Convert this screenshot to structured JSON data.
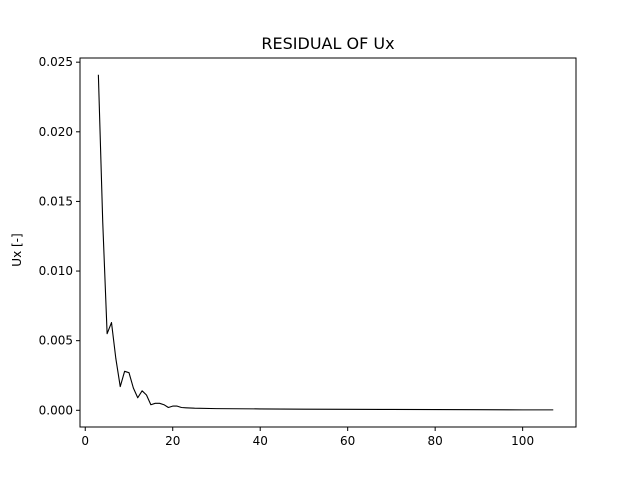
{
  "chart_data": {
    "type": "line",
    "title": "RESIDUAL OF Ux",
    "xlabel": "",
    "ylabel": "Ux [-]",
    "xlim": [
      -1.2,
      112.2
    ],
    "ylim": [
      -0.0012,
      0.0253
    ],
    "xticks": [
      0,
      20,
      40,
      60,
      80,
      100
    ],
    "xtick_labels": [
      "0",
      "20",
      "40",
      "60",
      "80",
      "100"
    ],
    "yticks": [
      0.0,
      0.005,
      0.01,
      0.015,
      0.02,
      0.025
    ],
    "ytick_labels": [
      "0.000",
      "0.005",
      "0.010",
      "0.015",
      "0.020",
      "0.025"
    ],
    "grid": false,
    "series": [
      {
        "color": "#000000",
        "x": [
          3,
          4,
          5,
          6,
          7,
          8,
          9,
          10,
          11,
          12,
          13,
          14,
          15,
          16,
          17,
          18,
          19,
          20,
          21,
          22,
          23,
          25,
          30,
          40,
          50,
          60,
          70,
          80,
          90,
          100,
          107
        ],
        "y": [
          0.0241,
          0.0135,
          0.0055,
          0.0063,
          0.0037,
          0.0017,
          0.0028,
          0.0027,
          0.0016,
          0.0009,
          0.0014,
          0.0011,
          0.0004,
          0.0005,
          0.0005,
          0.0004,
          0.0002,
          0.0003,
          0.0003,
          0.0002,
          0.00018,
          0.00015,
          0.00012,
          0.0001,
          8e-05,
          7e-05,
          6e-05,
          5e-05,
          4e-05,
          3e-05,
          3e-05
        ]
      }
    ]
  }
}
